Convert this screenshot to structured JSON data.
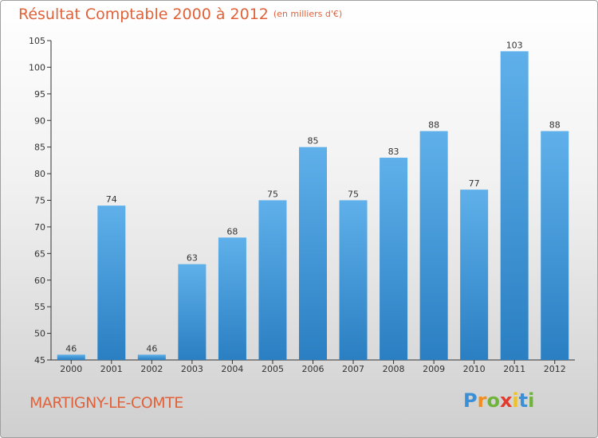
{
  "title": "Résultat Comptable 2000 à 2012",
  "subtitle": "(en milliers d'€)",
  "commune": "MARTIGNY-LE-COMTE",
  "brand": {
    "letters": [
      "P",
      "r",
      "o",
      "x",
      "i",
      "t",
      "i"
    ],
    "colors": [
      "#3a8fd6",
      "#f28c1c",
      "#6fb33a",
      "#e23b2e",
      "#f2c21c",
      "#3a8fd6",
      "#6fb33a"
    ]
  },
  "colors": {
    "bar_top": "#5fb0ea",
    "bar_bottom": "#2a7fc2",
    "title": "#e0623a"
  },
  "chart_data": {
    "type": "bar",
    "title": "Résultat Comptable 2000 à 2012",
    "xlabel": "",
    "ylabel": "",
    "categories": [
      "2000",
      "2001",
      "2002",
      "2003",
      "2004",
      "2005",
      "2006",
      "2007",
      "2008",
      "2009",
      "2010",
      "2011",
      "2012"
    ],
    "values": [
      46,
      74,
      46,
      63,
      68,
      75,
      85,
      75,
      83,
      88,
      77,
      103,
      88
    ],
    "ylim": [
      45,
      105
    ],
    "yticks": [
      45,
      50,
      55,
      60,
      65,
      70,
      75,
      80,
      85,
      90,
      95,
      100,
      105
    ],
    "grid": false
  }
}
